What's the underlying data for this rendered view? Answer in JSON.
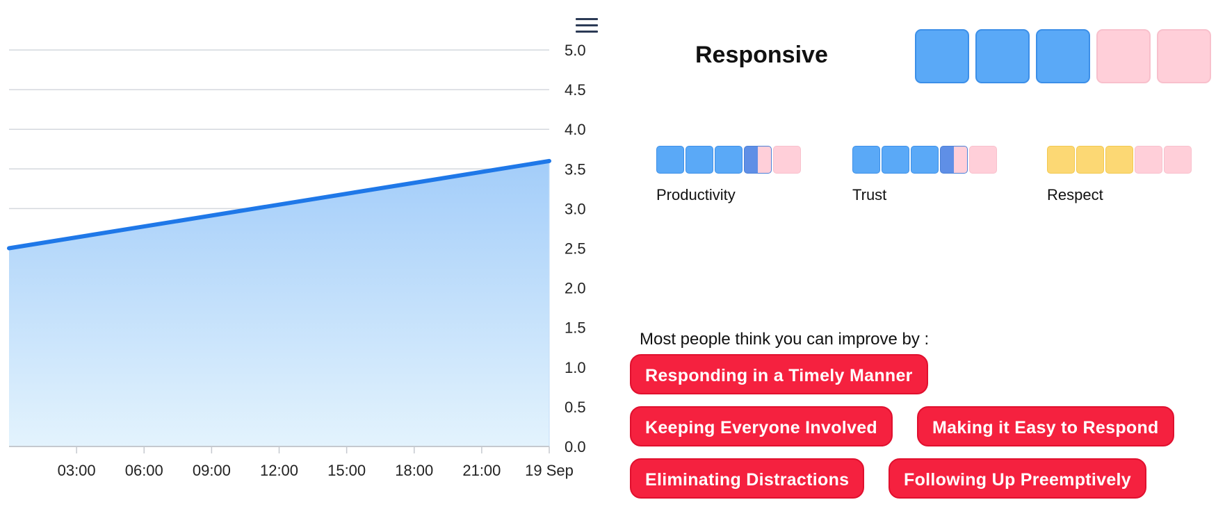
{
  "chart_data": {
    "type": "area",
    "x": [
      "18 Sep 00:00",
      "19 Sep 00:00"
    ],
    "y": [
      2.5,
      3.6
    ],
    "xticks": [
      "03:00",
      "06:00",
      "09:00",
      "12:00",
      "15:00",
      "18:00",
      "21:00",
      "19 Sep"
    ],
    "yticks": [
      "0.0",
      "0.5",
      "1.0",
      "1.5",
      "2.0",
      "2.5",
      "3.0",
      "3.5",
      "4.0",
      "4.5",
      "5.0"
    ],
    "ylim": [
      0,
      5
    ],
    "grid": true,
    "yaxis_position": "right",
    "line_color": "#1f78e8",
    "fill_top_color": "#a3cdf9",
    "fill_bottom_color": "#e3f3fd"
  },
  "menu": {
    "icon": "hamburger-menu-icon"
  },
  "summary": {
    "title": "Responsive",
    "squares": [
      "blue",
      "blue",
      "blue",
      "pink",
      "pink"
    ]
  },
  "metrics": [
    {
      "label": "Productivity",
      "color": "#5aa9f7",
      "filled": 3.5,
      "total": 5
    },
    {
      "label": "Trust",
      "color": "#5aa9f7",
      "filled": 3.5,
      "total": 5
    },
    {
      "label": "Respect",
      "color": "#fcd874",
      "filled": 3,
      "total": 5
    }
  ],
  "improve": {
    "title": "Most people think you can improve by :",
    "items": [
      "Responding in a Timely Manner",
      "Keeping Everyone Involved",
      "Making it Easy to Respond",
      "Eliminating Distractions",
      "Following Up Preemptively"
    ]
  },
  "colors": {
    "accent_red": "#f5213f",
    "blue": "#5aa9f7",
    "pink": "#ffcfd9",
    "yellow": "#fcd874"
  }
}
